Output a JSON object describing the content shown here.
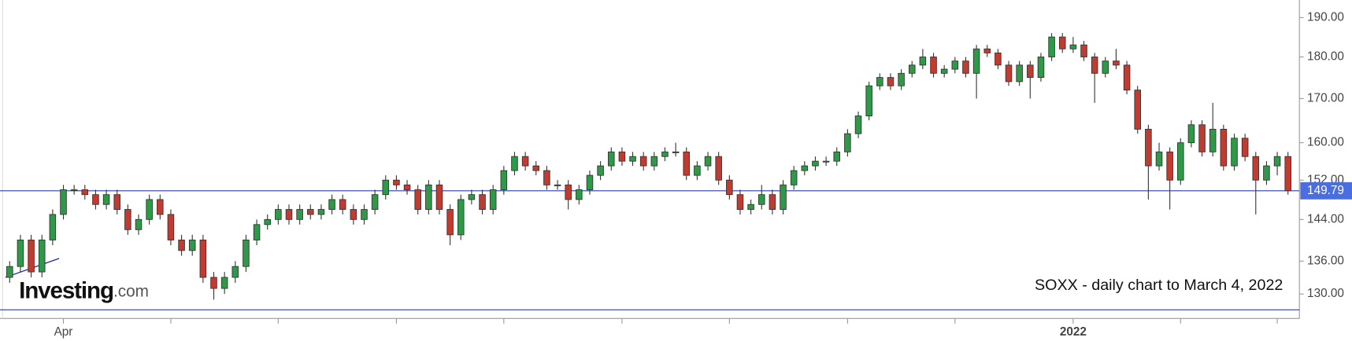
{
  "chart_data": {
    "type": "candlestick",
    "annotation": "SOXX - daily chart to March 4, 2022",
    "brand": "Investing",
    "brand_suffix": ".com",
    "log_scale": true,
    "ylim": [
      125.7,
      194.6
    ],
    "yticks": [
      {
        "value": 130,
        "label": "130.00"
      },
      {
        "value": 136,
        "label": "136.00"
      },
      {
        "value": 144,
        "label": "144.00"
      },
      {
        "value": 152,
        "label": "152.00"
      },
      {
        "value": 160,
        "label": "160.00"
      },
      {
        "value": 170,
        "label": "170.00"
      },
      {
        "value": 180,
        "label": "180.00"
      },
      {
        "value": 190,
        "label": "190.00"
      }
    ],
    "xticks": [
      5,
      15,
      25,
      36,
      46,
      57,
      67,
      78,
      88,
      99,
      109,
      118
    ],
    "categories": [
      null,
      null,
      null,
      null,
      null,
      "Apr",
      null,
      null,
      null,
      null,
      null,
      null,
      null,
      null,
      null,
      null,
      null,
      null,
      null,
      null,
      null,
      null,
      null,
      null,
      null,
      null,
      null,
      null,
      null,
      null,
      null,
      null,
      null,
      null,
      null,
      null,
      null,
      null,
      null,
      null,
      null,
      null,
      null,
      null,
      null,
      null,
      null,
      null,
      null,
      null,
      null,
      null,
      null,
      null,
      null,
      null,
      null,
      null,
      null,
      null,
      null,
      null,
      null,
      null,
      null,
      null,
      null,
      null,
      null,
      null,
      null,
      null,
      null,
      null,
      null,
      null,
      null,
      null,
      null,
      null,
      null,
      null,
      null,
      null,
      null,
      null,
      null,
      null,
      null,
      null,
      null,
      null,
      null,
      null,
      null,
      null,
      null,
      null,
      null,
      "2022",
      null,
      null,
      null,
      null,
      null,
      null,
      null,
      null,
      null,
      null,
      null,
      null,
      null,
      null,
      null,
      null,
      null,
      null,
      null,
      null
    ],
    "up_color": "#2e9a48",
    "down_color": "#c23b30",
    "line_color": "#2b3bb0",
    "hlines": [
      149.79,
      127.2
    ],
    "trendline": {
      "start": [
        0,
        133
      ],
      "end": [
        4.6,
        136.5
      ]
    },
    "open": [
      133,
      135,
      140,
      134,
      140,
      145,
      150,
      150,
      149,
      147,
      149,
      146,
      142,
      144,
      148,
      145,
      140,
      138,
      140,
      133,
      131,
      133,
      135,
      140,
      143,
      144,
      146,
      144,
      146,
      145,
      146,
      148,
      146,
      144,
      146,
      149,
      152,
      151,
      150,
      146,
      151,
      146,
      141,
      148,
      149,
      146,
      150,
      154,
      157,
      155,
      154,
      151,
      151,
      148,
      150,
      153,
      155,
      158,
      156,
      157,
      155,
      157,
      158,
      158,
      153,
      155,
      157,
      152,
      149,
      146,
      147,
      149,
      146,
      151,
      154,
      155,
      156,
      156,
      158,
      162,
      166,
      173,
      175,
      173,
      176,
      178,
      180,
      176,
      177,
      179,
      176,
      182,
      181,
      178,
      174,
      178,
      175,
      180,
      185,
      182,
      183,
      180,
      176,
      179,
      178,
      172,
      163,
      155,
      158,
      152,
      160,
      164,
      158,
      163,
      155,
      161,
      157,
      152,
      155,
      157
    ],
    "high": [
      136,
      141,
      141,
      141,
      146,
      151,
      151,
      151,
      150,
      150,
      150,
      147,
      145,
      149,
      149,
      146,
      141,
      141,
      141,
      134,
      134,
      136,
      141,
      144,
      145,
      147,
      147,
      147,
      147,
      147,
      149,
      149,
      147,
      147,
      150,
      153,
      153,
      152,
      151,
      152,
      152,
      147,
      149,
      150,
      150,
      151,
      155,
      158,
      158,
      156,
      155,
      152,
      152,
      151,
      154,
      156,
      159,
      159,
      158,
      158,
      158,
      159,
      160,
      159,
      156,
      158,
      158,
      153,
      150,
      148,
      151,
      150,
      152,
      155,
      156,
      157,
      157,
      159,
      163,
      167,
      174,
      176,
      176,
      177,
      179,
      182,
      181,
      178,
      180,
      180,
      183,
      183,
      182,
      179,
      179,
      179,
      181,
      186,
      186,
      185,
      184,
      181,
      180,
      182,
      179,
      173,
      164,
      160,
      159,
      161,
      165,
      165,
      169,
      164,
      162,
      162,
      158,
      156,
      158,
      158
    ],
    "low": [
      132,
      134,
      133,
      133,
      139,
      144,
      149,
      148,
      146,
      146,
      145,
      141,
      141,
      143,
      144,
      139,
      137,
      137,
      132,
      129,
      130,
      132,
      134,
      139,
      142,
      143,
      143,
      143,
      144,
      144,
      145,
      145,
      143,
      143,
      145,
      148,
      150,
      149,
      145,
      145,
      145,
      139,
      140,
      147,
      145,
      145,
      149,
      153,
      154,
      153,
      150,
      150,
      146,
      147,
      149,
      152,
      154,
      155,
      155,
      154,
      154,
      156,
      157,
      152,
      152,
      154,
      151,
      148,
      145,
      145,
      146,
      145,
      145,
      150,
      153,
      154,
      155,
      155,
      157,
      161,
      165,
      172,
      172,
      172,
      175,
      177,
      175,
      175,
      176,
      175,
      170,
      180,
      177,
      173,
      173,
      170,
      174,
      179,
      181,
      181,
      179,
      169,
      175,
      177,
      171,
      162,
      148,
      154,
      146,
      151,
      159,
      157,
      157,
      154,
      154,
      156,
      145,
      151,
      153,
      149
    ],
    "close": [
      135,
      140,
      134,
      140,
      145,
      150,
      150,
      149,
      147,
      149,
      146,
      142,
      144,
      148,
      145,
      140,
      138,
      140,
      133,
      131,
      133,
      135,
      140,
      143,
      144,
      146,
      144,
      146,
      145,
      146,
      148,
      146,
      144,
      146,
      149,
      152,
      151,
      150,
      146,
      151,
      146,
      141,
      148,
      149,
      146,
      150,
      154,
      157,
      155,
      154,
      151,
      151,
      148,
      150,
      153,
      155,
      158,
      156,
      157,
      155,
      157,
      158,
      158,
      153,
      155,
      157,
      152,
      149,
      146,
      147,
      149,
      146,
      151,
      154,
      155,
      156,
      156,
      158,
      162,
      166,
      173,
      175,
      173,
      176,
      178,
      180,
      176,
      177,
      179,
      176,
      182,
      181,
      178,
      174,
      178,
      175,
      180,
      185,
      182,
      183,
      180,
      176,
      179,
      178,
      172,
      163,
      155,
      158,
      152,
      160,
      164,
      158,
      163,
      155,
      161,
      157,
      152,
      155,
      157,
      149.79
    ],
    "last_label_color": "#4a6ee0"
  }
}
